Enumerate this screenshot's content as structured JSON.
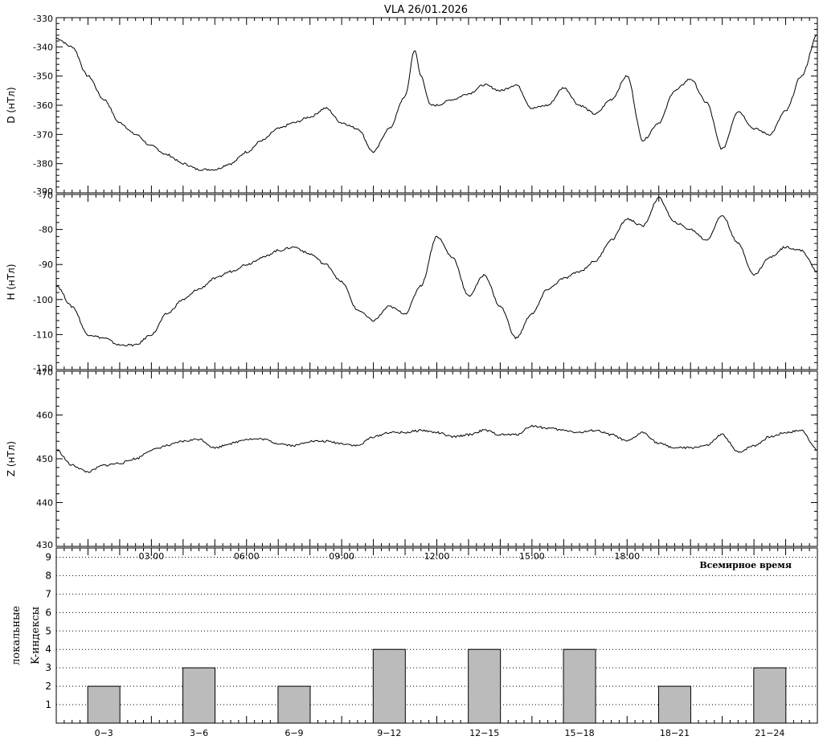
{
  "title": "VLA  26/01.2026",
  "colors": {
    "trace": "#000000",
    "bar_fill": "#bbbbbb",
    "bar_stroke": "#000000",
    "background": "#ffffff"
  },
  "chart_data": [
    {
      "type": "line",
      "ylabel": "D (нТл)",
      "ylim": [
        -390,
        -330
      ],
      "y_ticks": [
        "-330",
        "-340",
        "-350",
        "-360",
        "-370",
        "-380",
        "-390"
      ],
      "x_unit": "hours UT",
      "x": [
        0,
        0.5,
        1,
        1.5,
        2,
        2.5,
        3,
        3.5,
        4,
        4.5,
        5,
        5.5,
        6,
        6.5,
        7,
        7.5,
        8,
        8.5,
        9,
        9.5,
        10,
        10.5,
        11,
        11.3,
        11.5,
        11.8,
        12,
        12.5,
        13,
        13.5,
        14,
        14.5,
        15,
        15.5,
        16,
        16.5,
        17,
        17.5,
        18,
        18.5,
        19,
        19.5,
        20,
        20.5,
        21,
        21.5,
        22,
        22.5,
        23,
        23.5,
        24
      ],
      "values": [
        -337,
        -340,
        -350,
        -358,
        -366,
        -370,
        -374,
        -377,
        -380,
        -382,
        -382,
        -380,
        -376,
        -372,
        -368,
        -366,
        -364,
        -361,
        -366,
        -368,
        -376,
        -368,
        -357,
        -341,
        -350,
        -360,
        -360,
        -358,
        -356,
        -353,
        -355,
        -353,
        -361,
        -360,
        -354,
        -360,
        -363,
        -358,
        -350,
        -372,
        -366,
        -355,
        -351,
        -359,
        -375,
        -362,
        -368,
        -370,
        -362,
        -350,
        -336
      ]
    },
    {
      "type": "line",
      "ylabel": "H (нТл)",
      "ylim": [
        -120,
        -70
      ],
      "y_ticks": [
        "-70",
        "-80",
        "-90",
        "-100",
        "-110",
        "-120"
      ],
      "x_unit": "hours UT",
      "x": [
        0,
        0.5,
        1,
        1.5,
        2,
        2.5,
        3,
        3.5,
        4,
        4.5,
        5,
        5.5,
        6,
        6.5,
        7,
        7.5,
        8,
        8.5,
        9,
        9.5,
        10,
        10.5,
        11,
        11.5,
        12,
        12.5,
        13,
        13.5,
        14,
        14.5,
        15,
        15.5,
        16,
        16.5,
        17,
        17.5,
        18,
        18.5,
        19,
        19.5,
        20,
        20.5,
        21,
        21.5,
        22,
        22.5,
        23,
        23.5,
        24
      ],
      "values": [
        -96,
        -102,
        -110,
        -111,
        -113,
        -113,
        -110,
        -104,
        -100,
        -97,
        -94,
        -92,
        -90,
        -88,
        -86,
        -85,
        -87,
        -90,
        -95,
        -103,
        -106,
        -102,
        -104,
        -96,
        -82,
        -88,
        -99,
        -93,
        -102,
        -111,
        -104,
        -97,
        -94,
        -92,
        -89,
        -83,
        -77,
        -79,
        -71,
        -78,
        -80,
        -83,
        -76,
        -84,
        -93,
        -88,
        -85,
        -86,
        -92
      ]
    },
    {
      "type": "line",
      "ylabel": "Z (нТл)",
      "ylim": [
        430,
        470
      ],
      "y_ticks": [
        "470",
        "460",
        "450",
        "440",
        "430"
      ],
      "x_unit": "hours UT",
      "x": [
        0,
        0.5,
        1,
        1.5,
        2,
        2.5,
        3,
        3.5,
        4,
        4.5,
        5,
        5.5,
        6,
        6.5,
        7,
        7.5,
        8,
        8.5,
        9,
        9.5,
        10,
        10.5,
        11,
        11.5,
        12,
        12.5,
        13,
        13.5,
        14,
        14.5,
        15,
        15.5,
        16,
        16.5,
        17,
        17.5,
        18,
        18.5,
        19,
        19.5,
        20,
        20.5,
        21,
        21.5,
        22,
        22.5,
        23,
        23.5,
        24
      ],
      "values": [
        452,
        448.5,
        447,
        448.5,
        449,
        450,
        452,
        453,
        454,
        454.5,
        452.5,
        453.5,
        454.5,
        454.5,
        453.5,
        453,
        454,
        454,
        453.5,
        453,
        455,
        456,
        456,
        456.5,
        456,
        455,
        455.5,
        456.5,
        455.5,
        455.5,
        457.5,
        457,
        456.5,
        456,
        456.5,
        455.5,
        454,
        456,
        453.5,
        452.5,
        452.5,
        453,
        455.5,
        451.5,
        453,
        455,
        456,
        456.5,
        452
      ]
    },
    {
      "type": "bar",
      "ylabel": "K-индексы",
      "ylabel2": "локальные",
      "xlabel": "Всемирное время",
      "categories": [
        "0−3",
        "3−6",
        "6−9",
        "9−12",
        "12−15",
        "15−18",
        "18−21",
        "21−24"
      ],
      "values": [
        2,
        3,
        2,
        4,
        4,
        4,
        2,
        3
      ],
      "ylim": [
        0,
        9.5
      ],
      "y_ticks": [
        "1",
        "2",
        "3",
        "4",
        "5",
        "6",
        "7",
        "8",
        "9"
      ],
      "time_ticks": [
        "03:00",
        "06:00",
        "09:00",
        "12:00",
        "15:00",
        "18:00"
      ],
      "grid": "dotted horizontal"
    }
  ]
}
